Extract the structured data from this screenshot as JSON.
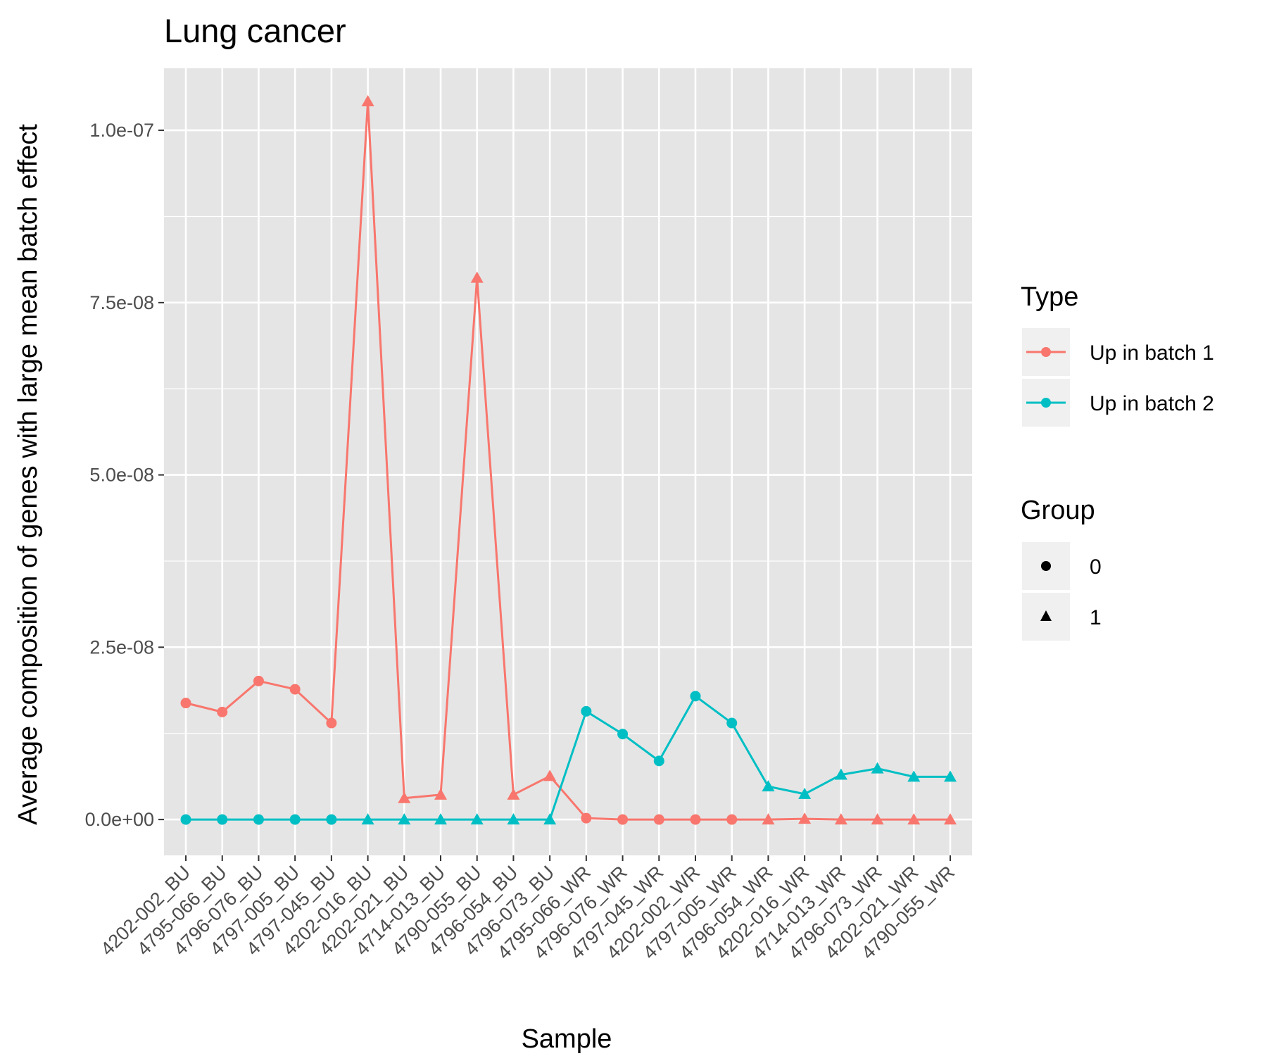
{
  "chart_data": {
    "type": "line",
    "title": "Lung cancer",
    "xlabel": "Sample",
    "ylabel": "Average composition of genes with large mean batch effect",
    "categories": [
      "4202-002_BU",
      "4795-066_BU",
      "4796-076_BU",
      "4797-005_BU",
      "4797-045_BU",
      "4202-016_BU",
      "4202-021_BU",
      "4714-013_BU",
      "4790-055_BU",
      "4796-054_BU",
      "4796-073_BU",
      "4795-066_WR",
      "4796-076_WR",
      "4797-045_WR",
      "4202-002_WR",
      "4797-005_WR",
      "4796-054_WR",
      "4202-016_WR",
      "4714-013_WR",
      "4796-073_WR",
      "4202-021_WR",
      "4790-055_WR"
    ],
    "group": [
      0,
      0,
      0,
      0,
      0,
      1,
      1,
      1,
      1,
      1,
      1,
      0,
      0,
      0,
      0,
      0,
      1,
      1,
      1,
      1,
      1,
      1
    ],
    "series": [
      {
        "name": "Up in batch 1",
        "color": "#F8766D",
        "values": [
          1.69e-08,
          1.56e-08,
          2.01e-08,
          1.89e-08,
          1.4e-08,
          1.042e-07,
          3.1e-09,
          3.6e-09,
          7.86e-08,
          3.6e-09,
          6.3e-09,
          2e-10,
          0,
          0,
          0,
          0,
          0,
          1e-10,
          0,
          0,
          0,
          0
        ]
      },
      {
        "name": "Up in batch 2",
        "color": "#00BFC4",
        "values": [
          0,
          0,
          0,
          0,
          0,
          0,
          0,
          0,
          0,
          0,
          0,
          1.57e-08,
          1.24e-08,
          8.5e-09,
          1.79e-08,
          1.4e-08,
          4.8e-09,
          3.7e-09,
          6.5e-09,
          7.4e-09,
          6.2e-09,
          6.2e-09
        ]
      }
    ],
    "yticks": [
      0,
      2.5e-08,
      5e-08,
      7.5e-08,
      1e-07
    ],
    "ytick_labels": [
      "0.0e+00",
      "2.5e-08",
      "5.0e-08",
      "7.5e-08",
      "1.0e-07"
    ],
    "ylim": [
      -5.2e-09,
      1.09e-07
    ],
    "grid": true,
    "legend_position": "right",
    "legends": [
      {
        "title": "Type",
        "entries": [
          "Up in batch 1",
          "Up in batch 2"
        ]
      },
      {
        "title": "Group",
        "entries": [
          "0",
          "1"
        ]
      }
    ]
  },
  "colors": {
    "panel": "#E5E5E5",
    "grid": "#FFFFFF",
    "legend_key_bg": "#F0F0F0"
  }
}
